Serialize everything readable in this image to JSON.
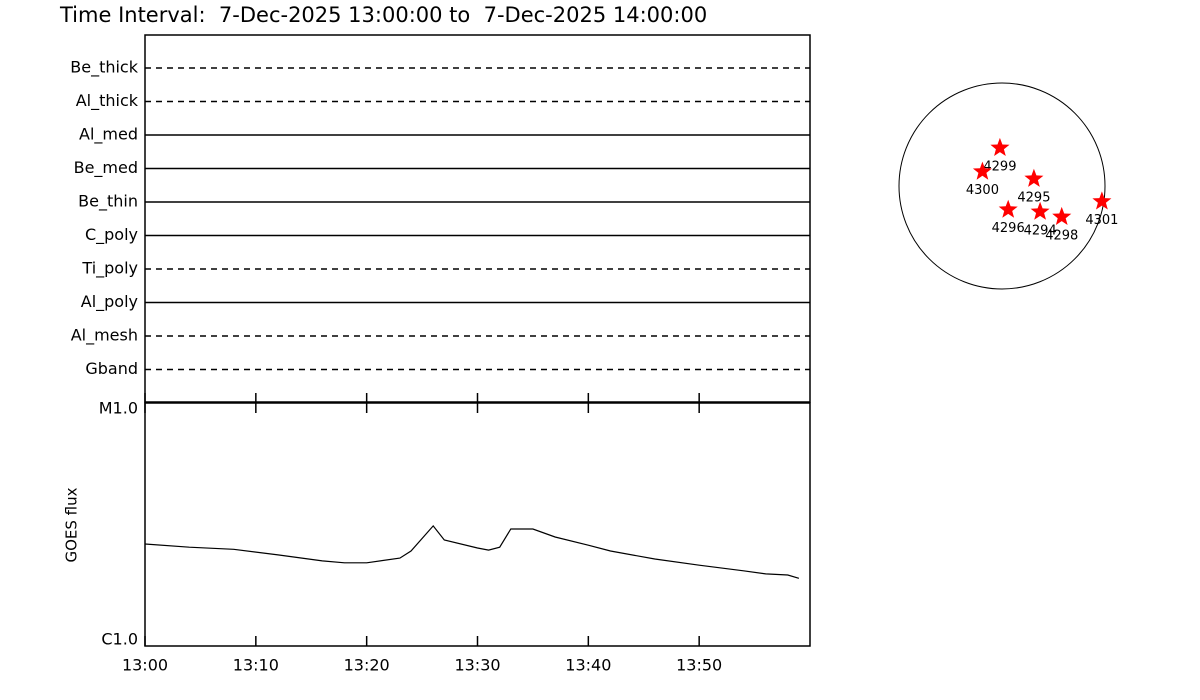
{
  "chart_data": [
    {
      "type": "timeline",
      "title": "Time Interval:  7-Dec-2025 13:00:00 to  7-Dec-2025 14:00:00",
      "categories": [
        "Be_thick",
        "Al_thick",
        "Al_med",
        "Be_med",
        "Be_thin",
        "C_poly",
        "Ti_poly",
        "Al_poly",
        "Al_mesh",
        "Gband"
      ],
      "line_styles": [
        "dashed",
        "dashed",
        "solid",
        "solid",
        "solid",
        "solid",
        "dashed",
        "solid",
        "dashed",
        "dashed"
      ],
      "color": "#000000"
    },
    {
      "type": "line",
      "ylabel": "GOES flux",
      "log_y": true,
      "ylim": [
        1e-06,
        1e-05
      ],
      "yticks": [
        {
          "value": 1e-06,
          "label": "C1.0"
        },
        {
          "value": 1e-05,
          "label": "M1.0"
        }
      ],
      "xlim": [
        "13:00",
        "14:00"
      ],
      "xticks": [
        "13:00",
        "13:10",
        "13:20",
        "13:30",
        "13:40",
        "13:50"
      ],
      "x": [
        "13:00",
        "13:04",
        "13:08",
        "13:12",
        "13:16",
        "13:18",
        "13:20",
        "13:23",
        "13:24",
        "13:26",
        "13:27",
        "13:30",
        "13:31",
        "13:32",
        "13:33",
        "13:35",
        "13:37",
        "13:40",
        "13:42",
        "13:46",
        "13:50",
        "13:54",
        "13:56",
        "13:58",
        "13:59"
      ],
      "values": [
        2.63e-06,
        2.55e-06,
        2.5e-06,
        2.37e-06,
        2.24e-06,
        2.2e-06,
        2.2e-06,
        2.3e-06,
        2.46e-06,
        3.12e-06,
        2.73e-06,
        2.53e-06,
        2.48e-06,
        2.55e-06,
        3.03e-06,
        3.03e-06,
        2.81e-06,
        2.6e-06,
        2.46e-06,
        2.28e-06,
        2.15e-06,
        2.04e-06,
        1.98e-06,
        1.96e-06,
        1.9e-06
      ],
      "color": "#000000"
    },
    {
      "type": "disk",
      "labels": [
        "4299",
        "4300",
        "4295",
        "4296",
        "4294",
        "4298",
        "4301"
      ],
      "x": [
        -0.02,
        -0.19,
        0.31,
        0.06,
        0.37,
        0.58,
        0.97
      ],
      "y": [
        0.37,
        0.14,
        0.07,
        -0.23,
        -0.25,
        -0.3,
        -0.15
      ],
      "color": "#ff0000"
    }
  ]
}
